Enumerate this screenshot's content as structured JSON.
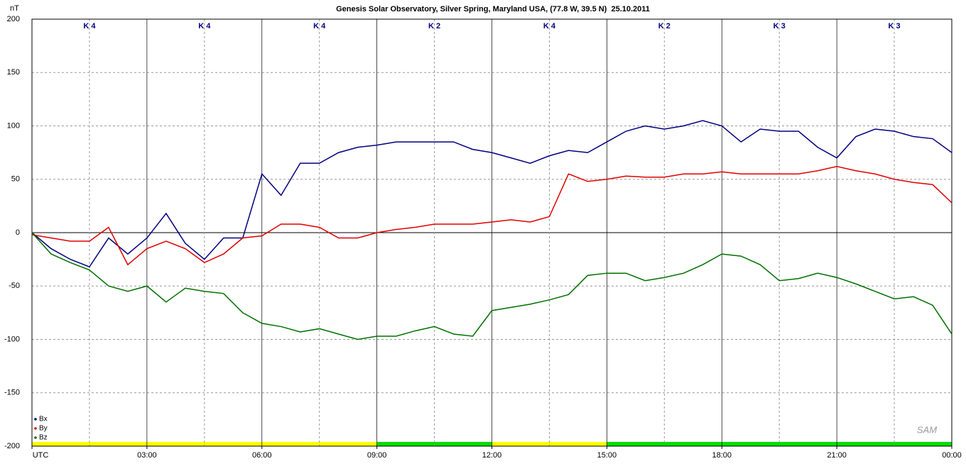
{
  "chart_data": {
    "type": "line",
    "title": "Genesis Solar Observatory, Silver Spring, Maryland USA, (77.8 W, 39.5 N)  25.10.2011",
    "y_label": "nT",
    "logo": "SAM",
    "x": [
      0,
      0.5,
      1,
      1.5,
      2,
      2.5,
      3,
      3.5,
      4,
      4.5,
      5,
      5.5,
      6,
      6.5,
      7,
      7.5,
      8,
      8.5,
      9,
      9.5,
      10,
      10.5,
      11,
      11.5,
      12,
      12.5,
      13,
      13.5,
      14,
      14.5,
      15,
      15.5,
      16,
      16.5,
      17,
      17.5,
      18,
      18.5,
      19,
      19.5,
      20,
      20.5,
      21,
      21.5,
      22,
      22.5,
      23,
      23.5,
      24
    ],
    "series": [
      {
        "name": "Bx",
        "color": "#000080",
        "values": [
          0,
          -15,
          -25,
          -32,
          -5,
          -20,
          -5,
          18,
          -10,
          -25,
          -5,
          -5,
          55,
          35,
          65,
          65,
          75,
          80,
          82,
          85,
          85,
          85,
          85,
          78,
          75,
          70,
          65,
          72,
          77,
          75,
          85,
          95,
          100,
          97,
          100,
          105,
          100,
          85,
          97,
          95,
          95,
          80,
          70,
          90,
          97,
          95,
          90,
          88,
          75
        ]
      },
      {
        "name": "By",
        "color": "#e00000",
        "values": [
          -2,
          -5,
          -8,
          -8,
          5,
          -30,
          -15,
          -8,
          -15,
          -28,
          -20,
          -5,
          -3,
          8,
          8,
          5,
          -5,
          -5,
          0,
          3,
          5,
          8,
          8,
          8,
          10,
          12,
          10,
          15,
          55,
          48,
          50,
          53,
          52,
          52,
          55,
          55,
          57,
          55,
          55,
          55,
          55,
          58,
          62,
          58,
          55,
          50,
          47,
          45,
          28
        ]
      },
      {
        "name": "Bz",
        "color": "#007000",
        "values": [
          0,
          -20,
          -28,
          -35,
          -50,
          -55,
          -50,
          -65,
          -52,
          -55,
          -57,
          -75,
          -85,
          -88,
          -93,
          -90,
          -95,
          -100,
          -97,
          -97,
          -92,
          -88,
          -95,
          -97,
          -73,
          -70,
          -67,
          -63,
          -58,
          -40,
          -38,
          -38,
          -45,
          -42,
          -38,
          -30,
          -20,
          -22,
          -30,
          -45,
          -43,
          -38,
          -42,
          -48,
          -55,
          -62,
          -60,
          -68,
          -95
        ]
      }
    ],
    "xlim": [
      0,
      24
    ],
    "xticks": [
      {
        "value": 0,
        "label": "UTC"
      },
      {
        "value": 3,
        "label": "03:00"
      },
      {
        "value": 6,
        "label": "06:00"
      },
      {
        "value": 9,
        "label": "09:00"
      },
      {
        "value": 12,
        "label": "12:00"
      },
      {
        "value": 15,
        "label": "15:00"
      },
      {
        "value": 18,
        "label": "18:00"
      },
      {
        "value": 21,
        "label": "21:00"
      },
      {
        "value": 24,
        "label": "00:00"
      }
    ],
    "ylim": [
      -200,
      200
    ],
    "yticks": [
      -200,
      -150,
      -100,
      -50,
      0,
      50,
      100,
      150,
      200
    ],
    "k_index": [
      {
        "label": "K 4",
        "color": "#ffff00"
      },
      {
        "label": "K 4",
        "color": "#ffff00"
      },
      {
        "label": "K 4",
        "color": "#ffff00"
      },
      {
        "label": "K 2",
        "color": "#00e000"
      },
      {
        "label": "K 4",
        "color": "#ffff00"
      },
      {
        "label": "K 2",
        "color": "#00e000"
      },
      {
        "label": "K 3",
        "color": "#00e000"
      },
      {
        "label": "K 3",
        "color": "#00e000"
      }
    ],
    "grid": true
  }
}
